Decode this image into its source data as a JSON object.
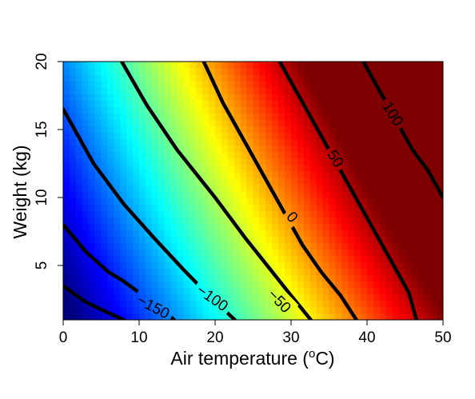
{
  "chart_data": {
    "type": "heatmap",
    "title": "",
    "xlabel": "Air temperature (",
    "xlabel_unit": "o",
    "xlabel_unit_suffix": "C)",
    "ylabel": "Weight (kg)",
    "xlim": [
      0,
      50
    ],
    "ylim": [
      1,
      20
    ],
    "x_ticks": [
      "0",
      "10",
      "20",
      "30",
      "40",
      "50"
    ],
    "y_ticks": [
      "5",
      "10",
      "15",
      "20"
    ],
    "colormap": [
      "#00007F",
      "#0000FF",
      "#007FFF",
      "#00FFFF",
      "#7FFF7F",
      "#FFFF00",
      "#FF7F00",
      "#FF0000",
      "#7F0000"
    ],
    "color_range": [
      -195,
      145
    ],
    "contours": [
      {
        "level": -200,
        "label": "",
        "points": [
          [
            0,
            3.5
          ],
          [
            3,
            2.3
          ],
          [
            6,
            1.5
          ],
          [
            8,
            1
          ]
        ]
      },
      {
        "level": -150,
        "label": "−150",
        "points": [
          [
            0,
            8
          ],
          [
            3,
            6
          ],
          [
            6,
            4.5
          ],
          [
            7.8,
            3.9
          ],
          [
            11,
            2.6
          ],
          [
            14,
            1.3
          ],
          [
            14.6,
            1
          ]
        ]
      },
      {
        "level": -100,
        "label": "−100",
        "points": [
          [
            0,
            16.5
          ],
          [
            4,
            12.5
          ],
          [
            8,
            9.5
          ],
          [
            12,
            7
          ],
          [
            16,
            4.6
          ],
          [
            19.5,
            2.6
          ],
          [
            22.6,
            1
          ]
        ]
      },
      {
        "level": -50,
        "label": "−50",
        "points": [
          [
            7.7,
            20
          ],
          [
            11,
            16.8
          ],
          [
            15,
            13.5
          ],
          [
            20,
            10
          ],
          [
            24,
            7
          ],
          [
            26,
            5.6
          ],
          [
            29.7,
            3
          ],
          [
            32.6,
            1
          ]
        ]
      },
      {
        "level": 0,
        "label": "0",
        "points": [
          [
            18.5,
            20
          ],
          [
            21,
            17
          ],
          [
            24,
            14
          ],
          [
            27,
            11
          ],
          [
            29,
            9
          ],
          [
            31.5,
            6.5
          ],
          [
            34,
            4.5
          ],
          [
            36.5,
            2.8
          ],
          [
            38.6,
            1
          ]
        ]
      },
      {
        "level": 50,
        "label": "50",
        "points": [
          [
            28.5,
            20
          ],
          [
            31,
            17.5
          ],
          [
            33.5,
            15
          ],
          [
            36,
            12.5
          ],
          [
            38.5,
            10
          ],
          [
            41,
            7.5
          ],
          [
            43.5,
            5
          ],
          [
            45.5,
            3
          ],
          [
            46.5,
            1
          ]
        ]
      },
      {
        "level": 100,
        "label": "100",
        "points": [
          [
            39.5,
            20
          ],
          [
            42,
            17.5
          ],
          [
            44,
            15.5
          ],
          [
            46,
            13.5
          ],
          [
            48,
            12
          ],
          [
            50,
            10
          ]
        ]
      }
    ],
    "grid": false,
    "legend": "none"
  }
}
